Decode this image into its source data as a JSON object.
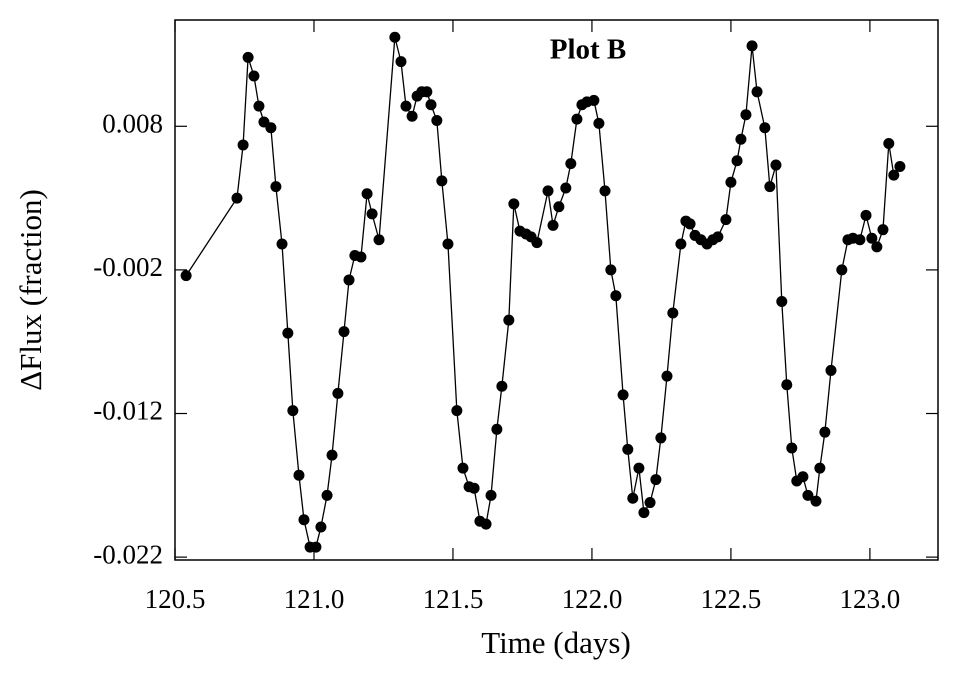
{
  "chart_data": {
    "type": "scatter",
    "line": true,
    "title": "Plot B",
    "title_color": "#e8524a",
    "xlabel": "Time (days)",
    "ylabel": "ΔFlux (fraction)",
    "color": "#000000",
    "xlim": [
      120.5,
      123.245
    ],
    "ylim": [
      -0.0222,
      0.0154
    ],
    "xticks": [
      {
        "value": 120.5,
        "label": "120.5"
      },
      {
        "value": 121,
        "label": "121.0"
      },
      {
        "value": 121.5,
        "label": "121.5"
      },
      {
        "value": 122,
        "label": "122.0"
      },
      {
        "value": 122.5,
        "label": "122.5"
      },
      {
        "value": 123,
        "label": "123.0"
      }
    ],
    "yticks": [
      0.008,
      -0.002,
      -0.012,
      -0.022
    ],
    "x": [
      120.54,
      120.723,
      120.745,
      120.763,
      120.784,
      120.802,
      120.82,
      120.845,
      120.863,
      120.885,
      120.906,
      120.924,
      120.946,
      120.964,
      120.986,
      121.007,
      121.025,
      121.047,
      121.065,
      121.086,
      121.108,
      121.126,
      121.147,
      121.169,
      121.191,
      121.209,
      121.234,
      121.291,
      121.313,
      121.331,
      121.353,
      121.371,
      121.388,
      121.406,
      121.421,
      121.442,
      121.46,
      121.482,
      121.514,
      121.536,
      121.558,
      121.576,
      121.597,
      121.619,
      121.637,
      121.658,
      121.676,
      121.701,
      121.719,
      121.741,
      121.763,
      121.781,
      121.802,
      121.842,
      121.86,
      121.881,
      121.906,
      121.924,
      121.946,
      121.964,
      121.982,
      122.007,
      122.025,
      122.047,
      122.068,
      122.086,
      122.112,
      122.129,
      122.147,
      122.169,
      122.187,
      122.209,
      122.23,
      122.248,
      122.27,
      122.291,
      122.32,
      122.338,
      122.353,
      122.371,
      122.392,
      122.414,
      122.435,
      122.453,
      122.482,
      122.5,
      122.522,
      122.536,
      122.554,
      122.576,
      122.594,
      122.622,
      122.64,
      122.662,
      122.683,
      122.701,
      122.719,
      122.737,
      122.759,
      122.777,
      122.806,
      122.82,
      122.838,
      122.86,
      122.899,
      122.921,
      122.939,
      122.964,
      122.986,
      123.007,
      123.025,
      123.047,
      123.068,
      123.086,
      123.108
    ],
    "values": [
      -0.0024,
      0.003,
      0.0067,
      0.0128,
      0.0115,
      0.0094,
      0.0083,
      0.0079,
      0.0038,
      -0.0002,
      -0.0064,
      -0.0118,
      -0.0163,
      -0.0194,
      -0.0213,
      -0.0213,
      -0.0199,
      -0.0177,
      -0.0149,
      -0.0106,
      -0.0063,
      -0.0027,
      -0.001,
      -0.0011,
      0.0033,
      0.0019,
      0.0001,
      0.0142,
      0.0125,
      0.0094,
      0.0087,
      0.0101,
      0.0104,
      0.0104,
      0.0095,
      0.0084,
      0.0042,
      -0.0002,
      -0.0118,
      -0.0158,
      -0.0171,
      -0.0172,
      -0.0195,
      -0.0197,
      -0.0177,
      -0.0131,
      -0.0101,
      -0.0055,
      0.0026,
      0.0007,
      0.0005,
      0.0003,
      -0.0001,
      0.0035,
      0.0011,
      0.0024,
      0.0037,
      0.0054,
      0.0085,
      0.0095,
      0.0097,
      0.0098,
      0.0082,
      0.0035,
      -0.002,
      -0.0038,
      -0.0107,
      -0.0145,
      -0.0179,
      -0.0158,
      -0.0189,
      -0.0182,
      -0.0166,
      -0.0137,
      -0.0094,
      -0.005,
      -0.0002,
      0.0014,
      0.0012,
      0.0004,
      0.0001,
      -0.0002,
      0.0001,
      0.0003,
      0.0015,
      0.0041,
      0.0056,
      0.0071,
      0.0088,
      0.0136,
      0.0104,
      0.0079,
      0.0038,
      0.0053,
      -0.0042,
      -0.01,
      -0.0144,
      -0.0167,
      -0.0164,
      -0.0177,
      -0.0181,
      -0.0158,
      -0.0133,
      -0.009,
      -0.002,
      0.0001,
      0.0002,
      0.0001,
      0.0018,
      0.0002,
      -0.0004,
      0.0008,
      0.0068,
      0.0046,
      0.0052
    ]
  }
}
